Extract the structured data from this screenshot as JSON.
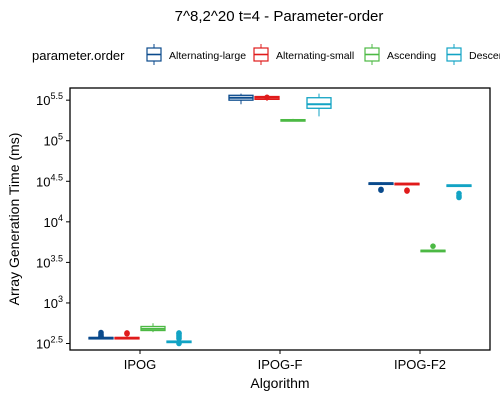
{
  "chart_data": {
    "type": "box",
    "title": "7^8,2^20 t=4 - Parameter-order",
    "xlabel": "Algorithm",
    "ylabel": "Array Generation Time (ms)",
    "y_scale": "log10",
    "ylim_log10": [
      2.42,
      5.65
    ],
    "categories": [
      "IPOG",
      "IPOG-F",
      "IPOG-F2"
    ],
    "y_ticks": [
      {
        "value": 2.5,
        "base": "10",
        "exp": "2.5"
      },
      {
        "value": 3.0,
        "base": "10",
        "exp": "3"
      },
      {
        "value": 3.5,
        "base": "10",
        "exp": "3.5"
      },
      {
        "value": 4.0,
        "base": "10",
        "exp": "4"
      },
      {
        "value": 4.5,
        "base": "10",
        "exp": "4.5"
      },
      {
        "value": 5.0,
        "base": "10",
        "exp": "5"
      },
      {
        "value": 5.5,
        "base": "10",
        "exp": "5.5"
      }
    ],
    "legend": {
      "title": "parameter.order",
      "position": "top",
      "entries": [
        "Alternating-large",
        "Alternating-small",
        "Ascending",
        "Descending"
      ]
    },
    "series": [
      {
        "name": "Alternating-large",
        "color": "#0a4a8c",
        "boxes": [
          {
            "min": 2.56,
            "q1": 2.565,
            "median": 2.57,
            "q3": 2.575,
            "max": 2.58,
            "outliers": [
              2.585,
              2.595,
              2.615,
              2.635
            ]
          },
          {
            "min": 5.45,
            "q1": 5.5,
            "median": 5.53,
            "q3": 5.56,
            "max": 5.58,
            "outliers": []
          },
          {
            "min": 4.46,
            "q1": 4.47,
            "median": 4.475,
            "q3": 4.48,
            "max": 4.49,
            "outliers": [
              4.4,
              4.39
            ]
          }
        ]
      },
      {
        "name": "Alternating-small",
        "color": "#e01b1b",
        "boxes": [
          {
            "min": 2.56,
            "q1": 2.565,
            "median": 2.57,
            "q3": 2.575,
            "max": 2.58,
            "outliers": [
              2.62,
              2.63
            ]
          },
          {
            "min": 5.49,
            "q1": 5.51,
            "median": 5.53,
            "q3": 5.545,
            "max": 5.56,
            "outliers": [
              5.535
            ]
          },
          {
            "min": 4.45,
            "q1": 4.46,
            "median": 4.47,
            "q3": 4.475,
            "max": 4.48,
            "outliers": [
              4.39,
              4.38
            ]
          }
        ]
      },
      {
        "name": "Ascending",
        "color": "#4cb944",
        "boxes": [
          {
            "min": 2.64,
            "q1": 2.66,
            "median": 2.68,
            "q3": 2.71,
            "max": 2.75,
            "outliers": []
          },
          {
            "min": 5.24,
            "q1": 5.25,
            "median": 5.255,
            "q3": 5.26,
            "max": 5.27,
            "outliers": []
          },
          {
            "min": 3.63,
            "q1": 3.64,
            "median": 3.645,
            "q3": 3.65,
            "max": 3.66,
            "outliers": [
              3.7
            ]
          }
        ]
      },
      {
        "name": "Descending",
        "color": "#12a3c4",
        "boxes": [
          {
            "min": 2.51,
            "q1": 2.52,
            "median": 2.525,
            "q3": 2.53,
            "max": 2.54,
            "outliers": [
              2.56,
              2.58,
              2.6,
              2.62,
              2.63,
              2.5
            ]
          },
          {
            "min": 5.3,
            "q1": 5.4,
            "median": 5.45,
            "q3": 5.53,
            "max": 5.58,
            "outliers": []
          },
          {
            "min": 4.43,
            "q1": 4.44,
            "median": 4.45,
            "q3": 4.455,
            "max": 4.46,
            "outliers": [
              4.35,
              4.32,
              4.3
            ]
          }
        ]
      }
    ]
  }
}
